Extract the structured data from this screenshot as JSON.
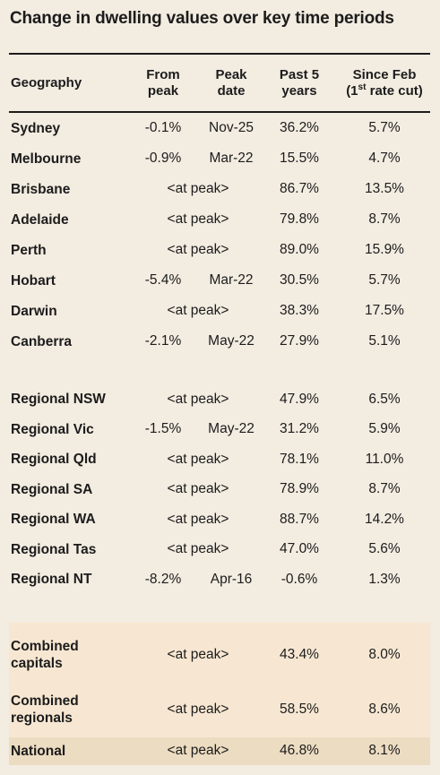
{
  "title": "Change in dwelling values over key time periods",
  "header": {
    "geography": "Geography",
    "from_peak_1": "From",
    "from_peak_2": "peak",
    "peak_date_1": "Peak",
    "peak_date_2": "date",
    "past5_1": "Past 5",
    "past5_2": "years",
    "since_feb_1": "Since Feb",
    "since_feb_2a": "(1",
    "since_feb_sup": "st",
    "since_feb_2b": " rate cut)"
  },
  "capitals": [
    {
      "name": "Sydney",
      "from_peak": "-0.1%",
      "peak_date": "Nov-25",
      "past5": "36.2%",
      "since_feb": "5.7%"
    },
    {
      "name": "Melbourne",
      "from_peak": "-0.9%",
      "peak_date": "Mar-22",
      "past5": "15.5%",
      "since_feb": "4.7%"
    },
    {
      "name": "Brisbane",
      "at_peak": "<at peak>",
      "past5": "86.7%",
      "since_feb": "13.5%"
    },
    {
      "name": "Adelaide",
      "at_peak": "<at peak>",
      "past5": "79.8%",
      "since_feb": "8.7%"
    },
    {
      "name": "Perth",
      "at_peak": "<at peak>",
      "past5": "89.0%",
      "since_feb": "15.9%"
    },
    {
      "name": "Hobart",
      "from_peak": "-5.4%",
      "peak_date": "Mar-22",
      "past5": "30.5%",
      "since_feb": "5.7%"
    },
    {
      "name": "Darwin",
      "at_peak": "<at peak>",
      "past5": "38.3%",
      "since_feb": "17.5%"
    },
    {
      "name": "Canberra",
      "from_peak": "-2.1%",
      "peak_date": "May-22",
      "past5": "27.9%",
      "since_feb": "5.1%"
    }
  ],
  "regionals": [
    {
      "name": "Regional NSW",
      "at_peak": "<at peak>",
      "past5": "47.9%",
      "since_feb": "6.5%"
    },
    {
      "name": "Regional Vic",
      "from_peak": "-1.5%",
      "peak_date": "May-22",
      "past5": "31.2%",
      "since_feb": "5.9%"
    },
    {
      "name": "Regional Qld",
      "at_peak": "<at peak>",
      "past5": "78.1%",
      "since_feb": "11.0%"
    },
    {
      "name": "Regional SA",
      "at_peak": "<at peak>",
      "past5": "78.9%",
      "since_feb": "8.7%"
    },
    {
      "name": "Regional WA",
      "at_peak": "<at peak>",
      "past5": "88.7%",
      "since_feb": "14.2%"
    },
    {
      "name": "Regional Tas",
      "at_peak": "<at peak>",
      "past5": "47.0%",
      "since_feb": "5.6%"
    },
    {
      "name": "Regional NT",
      "from_peak": "-8.2%",
      "peak_date": "Apr-16",
      "past5": "-0.6%",
      "since_feb": "1.3%"
    }
  ],
  "combined": [
    {
      "name_1": "Combined",
      "name_2": "capitals",
      "at_peak": "<at peak>",
      "past5": "43.4%",
      "since_feb": "8.0%"
    },
    {
      "name_1": "Combined",
      "name_2": "regionals",
      "at_peak": "<at peak>",
      "past5": "58.5%",
      "since_feb": "8.6%"
    }
  ],
  "national": {
    "name": "National",
    "at_peak": "<at peak>",
    "past5": "46.8%",
    "since_feb": "8.1%"
  },
  "colors": {
    "background": "#f3ece1",
    "combined_shade": "#f7e7d2",
    "national_shade": "#ecdcc1"
  }
}
